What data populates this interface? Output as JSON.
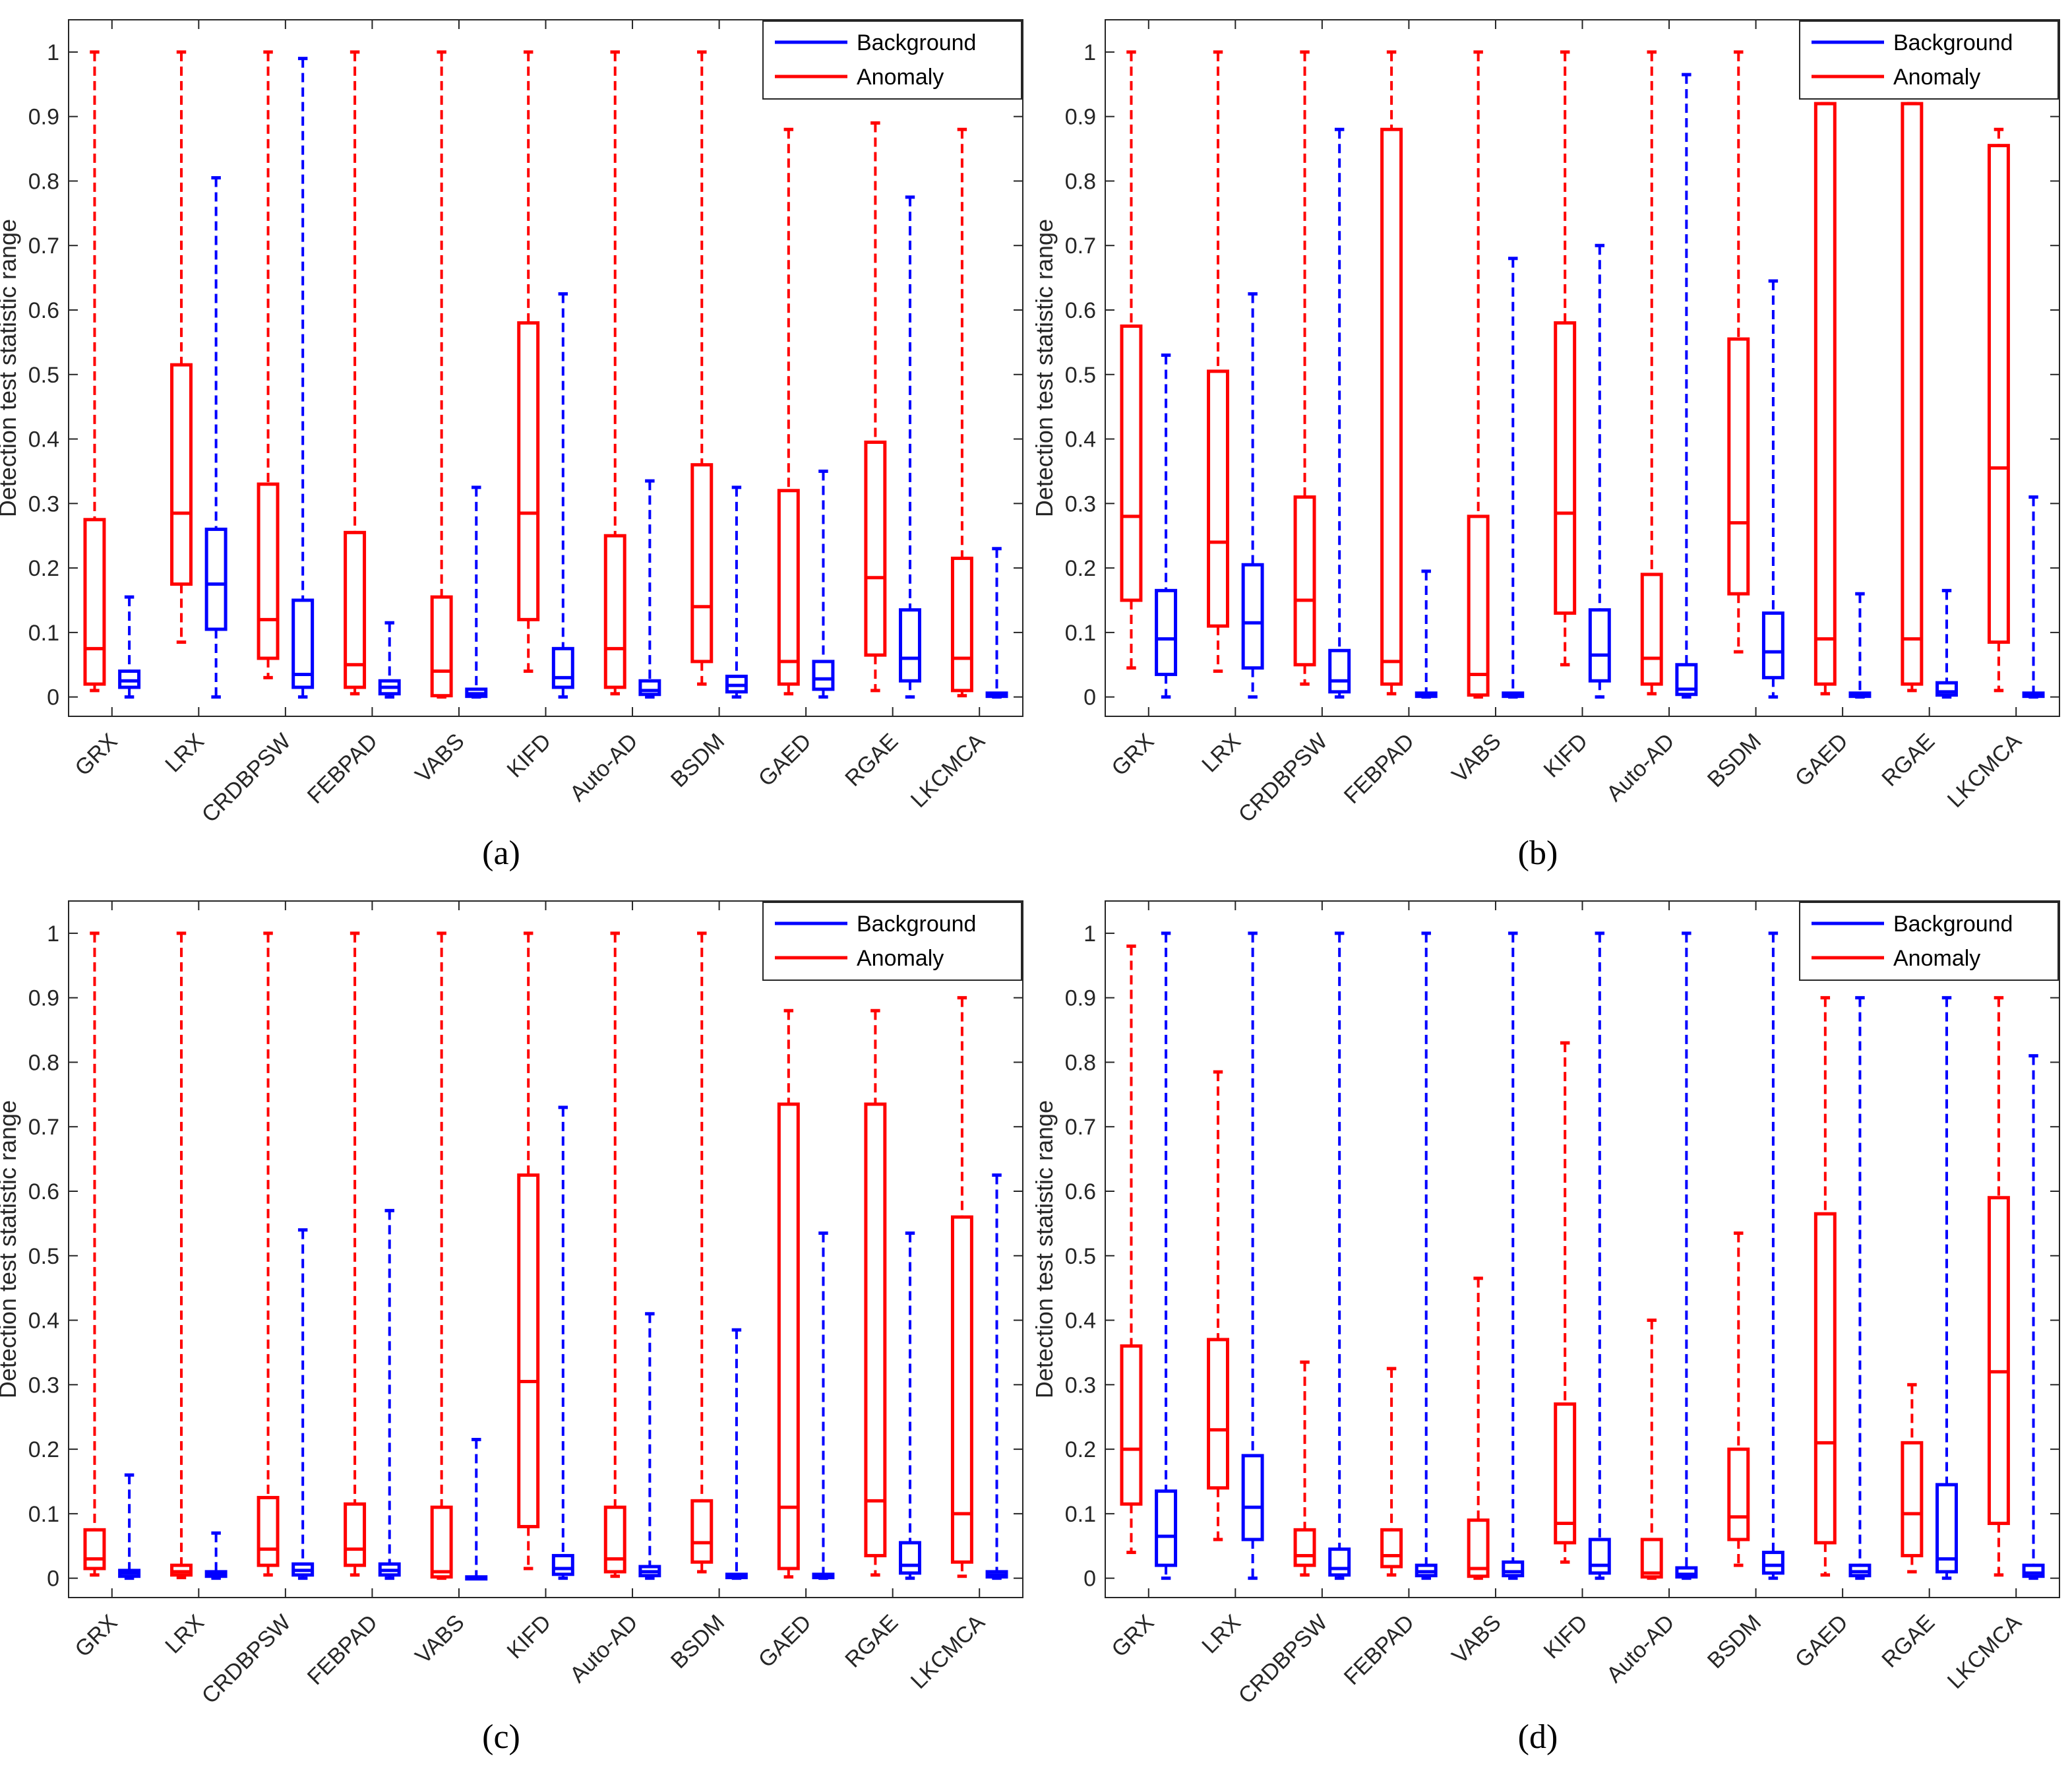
{
  "colors": {
    "background": "#0000FF",
    "anomaly": "#FF0000",
    "axis": "#262626"
  },
  "legend": {
    "background_label": "Background",
    "anomaly_label": "Anomaly"
  },
  "chart_data": [
    {
      "panel_label": "(a)",
      "type": "boxplot",
      "ylabel": "Detection test statistic range",
      "ylim": [
        -0.03,
        1.05
      ],
      "yticks": [
        "0",
        "0.1",
        "0.2",
        "0.3",
        "0.4",
        "0.5",
        "0.6",
        "0.7",
        "0.8",
        "0.9",
        "1"
      ],
      "categories": [
        "GRX",
        "LRX",
        "CRDBPSW",
        "FEBPAD",
        "VABS",
        "KIFD",
        "Auto-AD",
        "BSDM",
        "GAED",
        "RGAE",
        "LKCMCA"
      ],
      "series": [
        {
          "name": "Anomaly",
          "boxes": [
            {
              "min": 0.01,
              "q1": 0.02,
              "median": 0.075,
              "q3": 0.275,
              "max": 1.0
            },
            {
              "min": 0.085,
              "q1": 0.175,
              "median": 0.285,
              "q3": 0.515,
              "max": 1.0
            },
            {
              "min": 0.03,
              "q1": 0.06,
              "median": 0.12,
              "q3": 0.33,
              "max": 1.0
            },
            {
              "min": 0.005,
              "q1": 0.015,
              "median": 0.05,
              "q3": 0.255,
              "max": 1.0
            },
            {
              "min": 0.0,
              "q1": 0.002,
              "median": 0.04,
              "q3": 0.155,
              "max": 1.0
            },
            {
              "min": 0.04,
              "q1": 0.12,
              "median": 0.285,
              "q3": 0.58,
              "max": 1.0
            },
            {
              "min": 0.005,
              "q1": 0.015,
              "median": 0.075,
              "q3": 0.25,
              "max": 1.0
            },
            {
              "min": 0.02,
              "q1": 0.055,
              "median": 0.14,
              "q3": 0.36,
              "max": 1.0
            },
            {
              "min": 0.005,
              "q1": 0.02,
              "median": 0.055,
              "q3": 0.32,
              "max": 0.88
            },
            {
              "min": 0.01,
              "q1": 0.065,
              "median": 0.185,
              "q3": 0.395,
              "max": 0.89
            },
            {
              "min": 0.002,
              "q1": 0.01,
              "median": 0.06,
              "q3": 0.215,
              "max": 0.88
            }
          ]
        },
        {
          "name": "Background",
          "boxes": [
            {
              "min": 0.0,
              "q1": 0.015,
              "median": 0.025,
              "q3": 0.04,
              "max": 0.155
            },
            {
              "min": 0.0,
              "q1": 0.105,
              "median": 0.175,
              "q3": 0.26,
              "max": 0.805
            },
            {
              "min": 0.0,
              "q1": 0.015,
              "median": 0.035,
              "q3": 0.15,
              "max": 0.99
            },
            {
              "min": 0.0,
              "q1": 0.005,
              "median": 0.015,
              "q3": 0.025,
              "max": 0.115
            },
            {
              "min": 0.0,
              "q1": 0.001,
              "median": 0.005,
              "q3": 0.012,
              "max": 0.325
            },
            {
              "min": 0.0,
              "q1": 0.015,
              "median": 0.03,
              "q3": 0.075,
              "max": 0.625
            },
            {
              "min": 0.0,
              "q1": 0.004,
              "median": 0.01,
              "q3": 0.025,
              "max": 0.335
            },
            {
              "min": 0.0,
              "q1": 0.008,
              "median": 0.018,
              "q3": 0.032,
              "max": 0.325
            },
            {
              "min": 0.0,
              "q1": 0.012,
              "median": 0.028,
              "q3": 0.055,
              "max": 0.35
            },
            {
              "min": 0.0,
              "q1": 0.025,
              "median": 0.06,
              "q3": 0.135,
              "max": 0.775
            },
            {
              "min": 0.0,
              "q1": 0.001,
              "median": 0.003,
              "q3": 0.006,
              "max": 0.23
            }
          ]
        }
      ]
    },
    {
      "panel_label": "(b)",
      "type": "boxplot",
      "ylabel": "Detection test statistic range",
      "ylim": [
        -0.03,
        1.05
      ],
      "yticks": [
        "0",
        "0.1",
        "0.2",
        "0.3",
        "0.4",
        "0.5",
        "0.6",
        "0.7",
        "0.8",
        "0.9",
        "1"
      ],
      "categories": [
        "GRX",
        "LRX",
        "CRDBPSW",
        "FEBPAD",
        "VABS",
        "KIFD",
        "Auto-AD",
        "BSDM",
        "GAED",
        "RGAE",
        "LKCMCA"
      ],
      "series": [
        {
          "name": "Anomaly",
          "boxes": [
            {
              "min": 0.045,
              "q1": 0.15,
              "median": 0.28,
              "q3": 0.575,
              "max": 1.0
            },
            {
              "min": 0.04,
              "q1": 0.11,
              "median": 0.24,
              "q3": 0.505,
              "max": 1.0
            },
            {
              "min": 0.02,
              "q1": 0.05,
              "median": 0.15,
              "q3": 0.31,
              "max": 1.0
            },
            {
              "min": 0.005,
              "q1": 0.02,
              "median": 0.055,
              "q3": 0.88,
              "max": 1.0
            },
            {
              "min": 0.0,
              "q1": 0.003,
              "median": 0.035,
              "q3": 0.28,
              "max": 1.0
            },
            {
              "min": 0.05,
              "q1": 0.13,
              "median": 0.285,
              "q3": 0.58,
              "max": 1.0
            },
            {
              "min": 0.005,
              "q1": 0.02,
              "median": 0.06,
              "q3": 0.19,
              "max": 1.0
            },
            {
              "min": 0.07,
              "q1": 0.16,
              "median": 0.27,
              "q3": 0.555,
              "max": 1.0
            },
            {
              "min": 0.005,
              "q1": 0.02,
              "median": 0.09,
              "q3": 0.92,
              "max": 0.92
            },
            {
              "min": 0.01,
              "q1": 0.02,
              "median": 0.09,
              "q3": 0.92,
              "max": 0.92
            },
            {
              "min": 0.01,
              "q1": 0.085,
              "median": 0.355,
              "q3": 0.855,
              "max": 0.88
            }
          ]
        },
        {
          "name": "Background",
          "boxes": [
            {
              "min": 0.0,
              "q1": 0.035,
              "median": 0.09,
              "q3": 0.165,
              "max": 0.53
            },
            {
              "min": 0.0,
              "q1": 0.045,
              "median": 0.115,
              "q3": 0.205,
              "max": 0.625
            },
            {
              "min": 0.0,
              "q1": 0.008,
              "median": 0.025,
              "q3": 0.072,
              "max": 0.88
            },
            {
              "min": 0.0,
              "q1": 0.001,
              "median": 0.003,
              "q3": 0.006,
              "max": 0.195
            },
            {
              "min": 0.0,
              "q1": 0.001,
              "median": 0.003,
              "q3": 0.006,
              "max": 0.68
            },
            {
              "min": 0.0,
              "q1": 0.025,
              "median": 0.065,
              "q3": 0.135,
              "max": 0.7
            },
            {
              "min": 0.0,
              "q1": 0.004,
              "median": 0.012,
              "q3": 0.05,
              "max": 0.965
            },
            {
              "min": 0.0,
              "q1": 0.03,
              "median": 0.07,
              "q3": 0.13,
              "max": 0.645
            },
            {
              "min": 0.0,
              "q1": 0.001,
              "median": 0.003,
              "q3": 0.006,
              "max": 0.16
            },
            {
              "min": 0.0,
              "q1": 0.003,
              "median": 0.008,
              "q3": 0.022,
              "max": 0.165
            },
            {
              "min": 0.0,
              "q1": 0.001,
              "median": 0.003,
              "q3": 0.006,
              "max": 0.31
            }
          ]
        }
      ]
    },
    {
      "panel_label": "(c)",
      "type": "boxplot",
      "ylabel": "Detection test statistic range",
      "ylim": [
        -0.03,
        1.05
      ],
      "yticks": [
        "0",
        "0.1",
        "0.2",
        "0.3",
        "0.4",
        "0.5",
        "0.6",
        "0.7",
        "0.8",
        "0.9",
        "1"
      ],
      "categories": [
        "GRX",
        "LRX",
        "CRDBPSW",
        "FEBPAD",
        "VABS",
        "KIFD",
        "Auto-AD",
        "BSDM",
        "GAED",
        "RGAE",
        "LKCMCA"
      ],
      "series": [
        {
          "name": "Anomaly",
          "boxes": [
            {
              "min": 0.005,
              "q1": 0.015,
              "median": 0.03,
              "q3": 0.075,
              "max": 1.0
            },
            {
              "min": 0.001,
              "q1": 0.005,
              "median": 0.01,
              "q3": 0.02,
              "max": 1.0
            },
            {
              "min": 0.005,
              "q1": 0.02,
              "median": 0.045,
              "q3": 0.125,
              "max": 1.0
            },
            {
              "min": 0.005,
              "q1": 0.02,
              "median": 0.045,
              "q3": 0.115,
              "max": 1.0
            },
            {
              "min": 0.0,
              "q1": 0.002,
              "median": 0.01,
              "q3": 0.11,
              "max": 1.0
            },
            {
              "min": 0.015,
              "q1": 0.08,
              "median": 0.305,
              "q3": 0.625,
              "max": 1.0
            },
            {
              "min": 0.003,
              "q1": 0.01,
              "median": 0.03,
              "q3": 0.11,
              "max": 1.0
            },
            {
              "min": 0.01,
              "q1": 0.025,
              "median": 0.055,
              "q3": 0.12,
              "max": 1.0
            },
            {
              "min": 0.002,
              "q1": 0.015,
              "median": 0.11,
              "q3": 0.735,
              "max": 0.88
            },
            {
              "min": 0.005,
              "q1": 0.035,
              "median": 0.12,
              "q3": 0.735,
              "max": 0.88
            },
            {
              "min": 0.003,
              "q1": 0.025,
              "median": 0.1,
              "q3": 0.56,
              "max": 0.9
            }
          ]
        },
        {
          "name": "Background",
          "boxes": [
            {
              "min": 0.0,
              "q1": 0.003,
              "median": 0.008,
              "q3": 0.012,
              "max": 0.16
            },
            {
              "min": 0.0,
              "q1": 0.003,
              "median": 0.006,
              "q3": 0.01,
              "max": 0.07
            },
            {
              "min": 0.0,
              "q1": 0.005,
              "median": 0.012,
              "q3": 0.022,
              "max": 0.54
            },
            {
              "min": 0.0,
              "q1": 0.005,
              "median": 0.012,
              "q3": 0.022,
              "max": 0.57
            },
            {
              "min": 0.0,
              "q1": 0.0,
              "median": 0.001,
              "q3": 0.002,
              "max": 0.215
            },
            {
              "min": 0.0,
              "q1": 0.006,
              "median": 0.015,
              "q3": 0.035,
              "max": 0.73
            },
            {
              "min": 0.0,
              "q1": 0.004,
              "median": 0.01,
              "q3": 0.018,
              "max": 0.41
            },
            {
              "min": 0.0,
              "q1": 0.001,
              "median": 0.003,
              "q3": 0.006,
              "max": 0.385
            },
            {
              "min": 0.0,
              "q1": 0.001,
              "median": 0.003,
              "q3": 0.006,
              "max": 0.535
            },
            {
              "min": 0.0,
              "q1": 0.008,
              "median": 0.02,
              "q3": 0.055,
              "max": 0.535
            },
            {
              "min": 0.0,
              "q1": 0.002,
              "median": 0.005,
              "q3": 0.01,
              "max": 0.625
            }
          ]
        }
      ]
    },
    {
      "panel_label": "(d)",
      "type": "boxplot",
      "ylabel": "Detection test statistic range",
      "ylim": [
        -0.03,
        1.05
      ],
      "yticks": [
        "0",
        "0.1",
        "0.2",
        "0.3",
        "0.4",
        "0.5",
        "0.6",
        "0.7",
        "0.8",
        "0.9",
        "1"
      ],
      "categories": [
        "GRX",
        "LRX",
        "CRDBPSW",
        "FEBPAD",
        "VABS",
        "KIFD",
        "Auto-AD",
        "BSDM",
        "GAED",
        "RGAE",
        "LKCMCA"
      ],
      "series": [
        {
          "name": "Anomaly",
          "boxes": [
            {
              "min": 0.04,
              "q1": 0.115,
              "median": 0.2,
              "q3": 0.36,
              "max": 0.98
            },
            {
              "min": 0.06,
              "q1": 0.14,
              "median": 0.23,
              "q3": 0.37,
              "max": 0.785
            },
            {
              "min": 0.005,
              "q1": 0.02,
              "median": 0.035,
              "q3": 0.075,
              "max": 0.335
            },
            {
              "min": 0.005,
              "q1": 0.018,
              "median": 0.035,
              "q3": 0.075,
              "max": 0.325
            },
            {
              "min": 0.0,
              "q1": 0.003,
              "median": 0.015,
              "q3": 0.09,
              "max": 0.465
            },
            {
              "min": 0.025,
              "q1": 0.055,
              "median": 0.085,
              "q3": 0.27,
              "max": 0.83
            },
            {
              "min": 0.0,
              "q1": 0.002,
              "median": 0.008,
              "q3": 0.06,
              "max": 0.4
            },
            {
              "min": 0.02,
              "q1": 0.06,
              "median": 0.095,
              "q3": 0.2,
              "max": 0.535
            },
            {
              "min": 0.005,
              "q1": 0.055,
              "median": 0.21,
              "q3": 0.565,
              "max": 0.9
            },
            {
              "min": 0.01,
              "q1": 0.035,
              "median": 0.1,
              "q3": 0.21,
              "max": 0.3
            },
            {
              "min": 0.005,
              "q1": 0.085,
              "median": 0.32,
              "q3": 0.59,
              "max": 0.9
            }
          ]
        },
        {
          "name": "Background",
          "boxes": [
            {
              "min": 0.0,
              "q1": 0.02,
              "median": 0.065,
              "q3": 0.135,
              "max": 1.0
            },
            {
              "min": 0.0,
              "q1": 0.06,
              "median": 0.11,
              "q3": 0.19,
              "max": 1.0
            },
            {
              "min": 0.0,
              "q1": 0.005,
              "median": 0.015,
              "q3": 0.045,
              "max": 1.0
            },
            {
              "min": 0.0,
              "q1": 0.004,
              "median": 0.01,
              "q3": 0.02,
              "max": 1.0
            },
            {
              "min": 0.0,
              "q1": 0.004,
              "median": 0.01,
              "q3": 0.025,
              "max": 1.0
            },
            {
              "min": 0.0,
              "q1": 0.008,
              "median": 0.02,
              "q3": 0.06,
              "max": 1.0
            },
            {
              "min": 0.0,
              "q1": 0.002,
              "median": 0.006,
              "q3": 0.016,
              "max": 1.0
            },
            {
              "min": 0.0,
              "q1": 0.008,
              "median": 0.02,
              "q3": 0.04,
              "max": 1.0
            },
            {
              "min": 0.0,
              "q1": 0.004,
              "median": 0.01,
              "q3": 0.02,
              "max": 0.9
            },
            {
              "min": 0.0,
              "q1": 0.01,
              "median": 0.03,
              "q3": 0.145,
              "max": 0.9
            },
            {
              "min": 0.0,
              "q1": 0.003,
              "median": 0.008,
              "q3": 0.02,
              "max": 0.81
            }
          ]
        }
      ]
    }
  ]
}
